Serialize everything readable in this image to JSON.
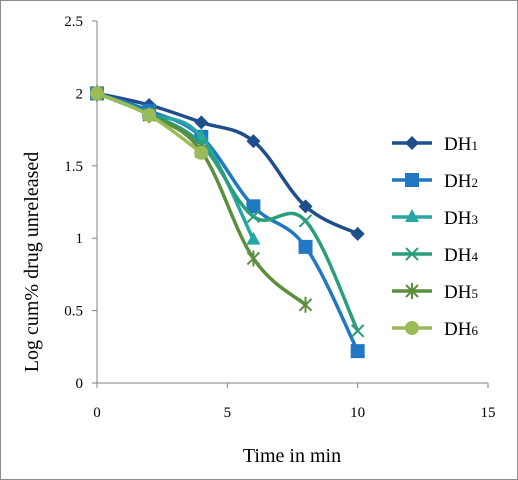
{
  "chart_data": {
    "type": "line",
    "xlabel": "Time in min",
    "ylabel": "Log cum% drug unreleased",
    "xlim": [
      0,
      15
    ],
    "ylim": [
      0,
      2.5
    ],
    "x_ticks": [
      "0",
      "5",
      "10",
      "15"
    ],
    "y_ticks": [
      "0",
      "0.5",
      "1",
      "1.5",
      "2",
      "2.5"
    ],
    "grid": false,
    "legend_position": "right",
    "series": [
      {
        "name": "DH1",
        "label_main": "DH",
        "label_sub": "1",
        "color": "#1f4e8c",
        "marker": "diamond",
        "x": [
          0,
          2,
          4,
          6,
          8,
          10
        ],
        "y": [
          2.0,
          1.92,
          1.8,
          1.67,
          1.22,
          1.03
        ]
      },
      {
        "name": "DH2",
        "label_main": "DH",
        "label_sub": "2",
        "color": "#1f78c1",
        "marker": "square",
        "x": [
          0,
          2,
          4,
          6,
          8,
          10
        ],
        "y": [
          2.0,
          1.88,
          1.7,
          1.22,
          0.94,
          0.22
        ]
      },
      {
        "name": "DH3",
        "label_main": "DH",
        "label_sub": "3",
        "color": "#27a6a6",
        "marker": "triangle",
        "x": [
          0,
          2,
          4,
          6
        ],
        "y": [
          2.0,
          1.86,
          1.7,
          0.99
        ]
      },
      {
        "name": "DH4",
        "label_main": "DH",
        "label_sub": "4",
        "color": "#2a9d7a",
        "marker": "x",
        "x": [
          0,
          2,
          4,
          6,
          8,
          10
        ],
        "y": [
          2.0,
          1.86,
          1.65,
          1.15,
          1.12,
          0.36
        ]
      },
      {
        "name": "DH5",
        "label_main": "DH",
        "label_sub": "5",
        "color": "#5b8f3c",
        "marker": "star",
        "x": [
          0,
          2,
          4,
          6,
          8
        ],
        "y": [
          2.0,
          1.85,
          1.6,
          0.86,
          0.54
        ]
      },
      {
        "name": "DH6",
        "label_main": "DH",
        "label_sub": "6",
        "color": "#9bbb59",
        "marker": "circle",
        "x": [
          0,
          2,
          4
        ],
        "y": [
          2.0,
          1.85,
          1.59
        ]
      }
    ]
  }
}
